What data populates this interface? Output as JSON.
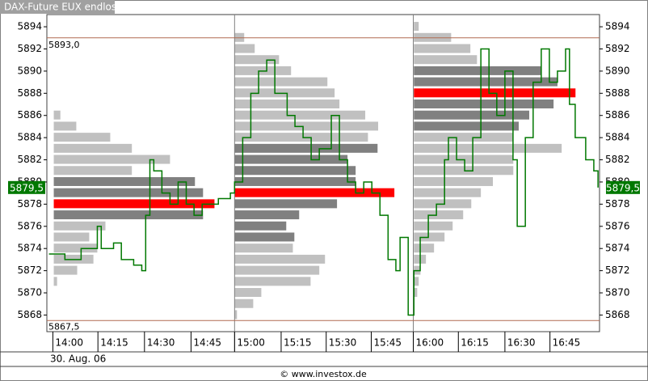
{
  "chart_data": {
    "type": "market-profile",
    "title": "DAX-Future EUX endlos",
    "date_label": "30. Aug. 06",
    "footer": "© www.investox.de",
    "xlim": [
      -2,
      182
    ],
    "ylim": [
      5866.5,
      5895.1
    ],
    "yticks": [
      5868,
      5870,
      5872,
      5874,
      5876,
      5878,
      5880,
      5882,
      5884,
      5886,
      5888,
      5890,
      5892,
      5894
    ],
    "xticks": [
      {
        "value": 0,
        "label": "14:00"
      },
      {
        "value": 15,
        "label": "14:15"
      },
      {
        "value": 30.5,
        "label": "14:30"
      },
      {
        "value": 46,
        "label": "14:45"
      },
      {
        "value": 60.5,
        "label": "15:00"
      },
      {
        "value": 76,
        "label": "15:15"
      },
      {
        "value": 91,
        "label": "15:30"
      },
      {
        "value": 106,
        "label": "15:45"
      },
      {
        "value": 120,
        "label": "16:00"
      },
      {
        "value": 135,
        "label": "16:15"
      },
      {
        "value": 150.5,
        "label": "16:30"
      },
      {
        "value": 165.5,
        "label": "16:45"
      }
    ],
    "sessions": [
      60.5,
      120
    ],
    "colors": {
      "light": "#c0c0c0",
      "dark": "#808080",
      "poc": "#ff0000",
      "line": "#007800",
      "level": "#b06a50"
    },
    "levels": [
      {
        "label": "5893,0",
        "value": 5893
      },
      {
        "label": "5867,5",
        "value": 5867.5
      }
    ],
    "current": {
      "label": "5879,5",
      "value": 5879.5
    },
    "profiles": [
      {
        "start": 0.3,
        "prices": [
          5886,
          5885,
          5884,
          5883,
          5882,
          5881,
          5880,
          5879,
          5878,
          5877,
          5876,
          5875,
          5874,
          5873,
          5872,
          5871
        ],
        "widths": [
          2.2,
          7.5,
          18.8,
          26,
          38.7,
          26,
          47,
          49.7,
          53.5,
          49.7,
          17.2,
          11.8,
          14.5,
          13.2,
          7.8,
          1.1
        ],
        "dark": [
          5880,
          5879,
          5877
        ],
        "poc": 5878
      },
      {
        "start": 60.5,
        "prices": [
          5893,
          5892,
          5891,
          5890,
          5889,
          5888,
          5887,
          5886,
          5885,
          5884,
          5883,
          5882,
          5881,
          5880,
          5879,
          5878,
          5877,
          5876,
          5875,
          5874,
          5873,
          5872,
          5871,
          5870,
          5869,
          5868
        ],
        "widths": [
          3.2,
          6.7,
          14.8,
          18.8,
          30.9,
          33.3,
          34.9,
          43.5,
          47.8,
          44.4,
          47.6,
          37.6,
          40.3,
          40.3,
          53.2,
          34.1,
          21.5,
          17.2,
          19.9,
          19.4,
          30.1,
          28.2,
          25.3,
          8.9,
          6.2,
          0.8
        ],
        "dark": [
          5883,
          5882,
          5881,
          5880,
          5878,
          5877,
          5876,
          5875
        ],
        "poc": 5879
      },
      {
        "start": 120.2,
        "prices": [
          5894,
          5893,
          5892,
          5891,
          5890,
          5889,
          5888,
          5887,
          5886,
          5885,
          5884,
          5883,
          5882,
          5881,
          5880,
          5879,
          5878,
          5877,
          5876,
          5875,
          5874,
          5873,
          5872,
          5871,
          5870
        ],
        "widths": [
          1.6,
          12.4,
          18.8,
          21,
          42.5,
          47.8,
          53.8,
          46.5,
          38.4,
          34.9,
          33.1,
          49.2,
          33.1,
          33.1,
          26.3,
          22.3,
          19.1,
          16.4,
          12.9,
          10.2,
          6.7,
          4,
          2.2,
          1.6,
          1.1
        ],
        "dark": [
          5890,
          5889,
          5887,
          5886,
          5885
        ],
        "poc": 5888
      }
    ],
    "price": {
      "x": [
        -1.3,
        4,
        9.4,
        13.4,
        14.8,
        16.1,
        20.2,
        22.8,
        24.2,
        26.9,
        29.6,
        30.9,
        32.3,
        33.6,
        36.3,
        39,
        41.7,
        44.4,
        47,
        49.7,
        52.4,
        55.1,
        59.1,
        60.5,
        63.2,
        65.9,
        68.5,
        71.2,
        73.9,
        78,
        80.6,
        83.3,
        86,
        88.7,
        92.7,
        95.4,
        98.1,
        100.8,
        103.5,
        106.2,
        108.9,
        111.6,
        114.2,
        115.6,
        118.3,
        120.2,
        122.3,
        125,
        127.7,
        130.4,
        131.7,
        134.4,
        137.1,
        139.8,
        142.5,
        145.2,
        147.8,
        150.5,
        153.2,
        154.6,
        157.3,
        159.9,
        162.6,
        165.3,
        168,
        170.7,
        172,
        173.9,
        177.4,
        180.1,
        181.5
      ],
      "values": [
        5873.5,
        5873,
        5874,
        5874,
        5876,
        5874,
        5874.5,
        5873,
        5873,
        5872.5,
        5872,
        5877,
        5882,
        5881,
        5879,
        5878,
        5880,
        5878,
        5877,
        5878,
        5878,
        5878.5,
        5879,
        5880,
        5884,
        5888,
        5890,
        5891,
        5888,
        5886,
        5885,
        5884,
        5882,
        5883,
        5886,
        5882,
        5880,
        5879,
        5880,
        5879,
        5877,
        5873,
        5872,
        5875,
        5868,
        5872,
        5875,
        5877,
        5878,
        5882,
        5884,
        5882,
        5881,
        5884,
        5892,
        5888,
        5886,
        5890,
        5882,
        5876,
        5884,
        5889,
        5892,
        5889,
        5890,
        5892,
        5887,
        5884,
        5882,
        5881,
        5879.5
      ]
    }
  }
}
